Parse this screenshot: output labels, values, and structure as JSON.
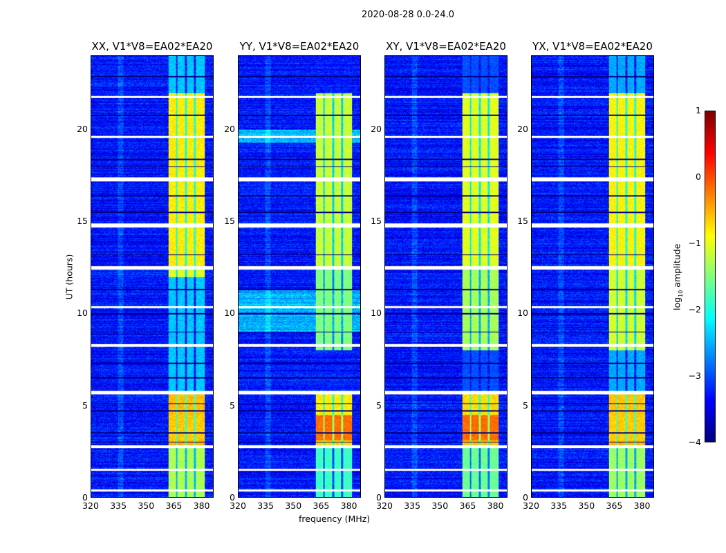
{
  "chart_data": {
    "type": "heatmap",
    "title": "2020-08-28 0.0-24.0",
    "xlabel": "frequency (MHz)",
    "ylabel": "UT (hours)",
    "xlim": [
      320,
      386.5
    ],
    "ylim": [
      0,
      24
    ],
    "xticks": [
      "320",
      "335",
      "350",
      "365",
      "380"
    ],
    "xtick_values": [
      320,
      335,
      350,
      365,
      380
    ],
    "yticks": [
      "0",
      "5",
      "10",
      "15",
      "20"
    ],
    "ytick_values": [
      0,
      5,
      10,
      15,
      20
    ],
    "panels": [
      {
        "title": "XX, V1*V8=EA02*EA20",
        "band_scale": 0.8
      },
      {
        "title": "YY, V1*V8=EA02*EA20",
        "band_scale": 1.15
      },
      {
        "title": "XY, V1*V8=EA02*EA20",
        "band_scale": 1.0
      },
      {
        "title": "YX, V1*V8=EA02*EA20",
        "band_scale": 0.85
      }
    ],
    "band_mhz": [
      362,
      382
    ],
    "flagged_hours": [
      [
        0.3,
        0.45
      ],
      [
        1.45,
        1.55
      ],
      [
        2.7,
        2.85
      ],
      [
        5.6,
        5.8
      ],
      [
        8.2,
        8.35
      ],
      [
        10.3,
        10.4
      ],
      [
        12.4,
        12.6
      ],
      [
        14.7,
        14.9
      ],
      [
        17.2,
        17.4
      ],
      [
        19.55,
        19.65
      ],
      [
        21.75,
        21.85
      ]
    ],
    "colorbar": {
      "label": "log10 amplitude",
      "range": [
        -4,
        1
      ],
      "ticks": [
        "1",
        "0",
        "−1",
        "−2",
        "−3",
        "−4"
      ],
      "tick_values": [
        1,
        0,
        -1,
        -2,
        -3,
        -4
      ]
    }
  }
}
